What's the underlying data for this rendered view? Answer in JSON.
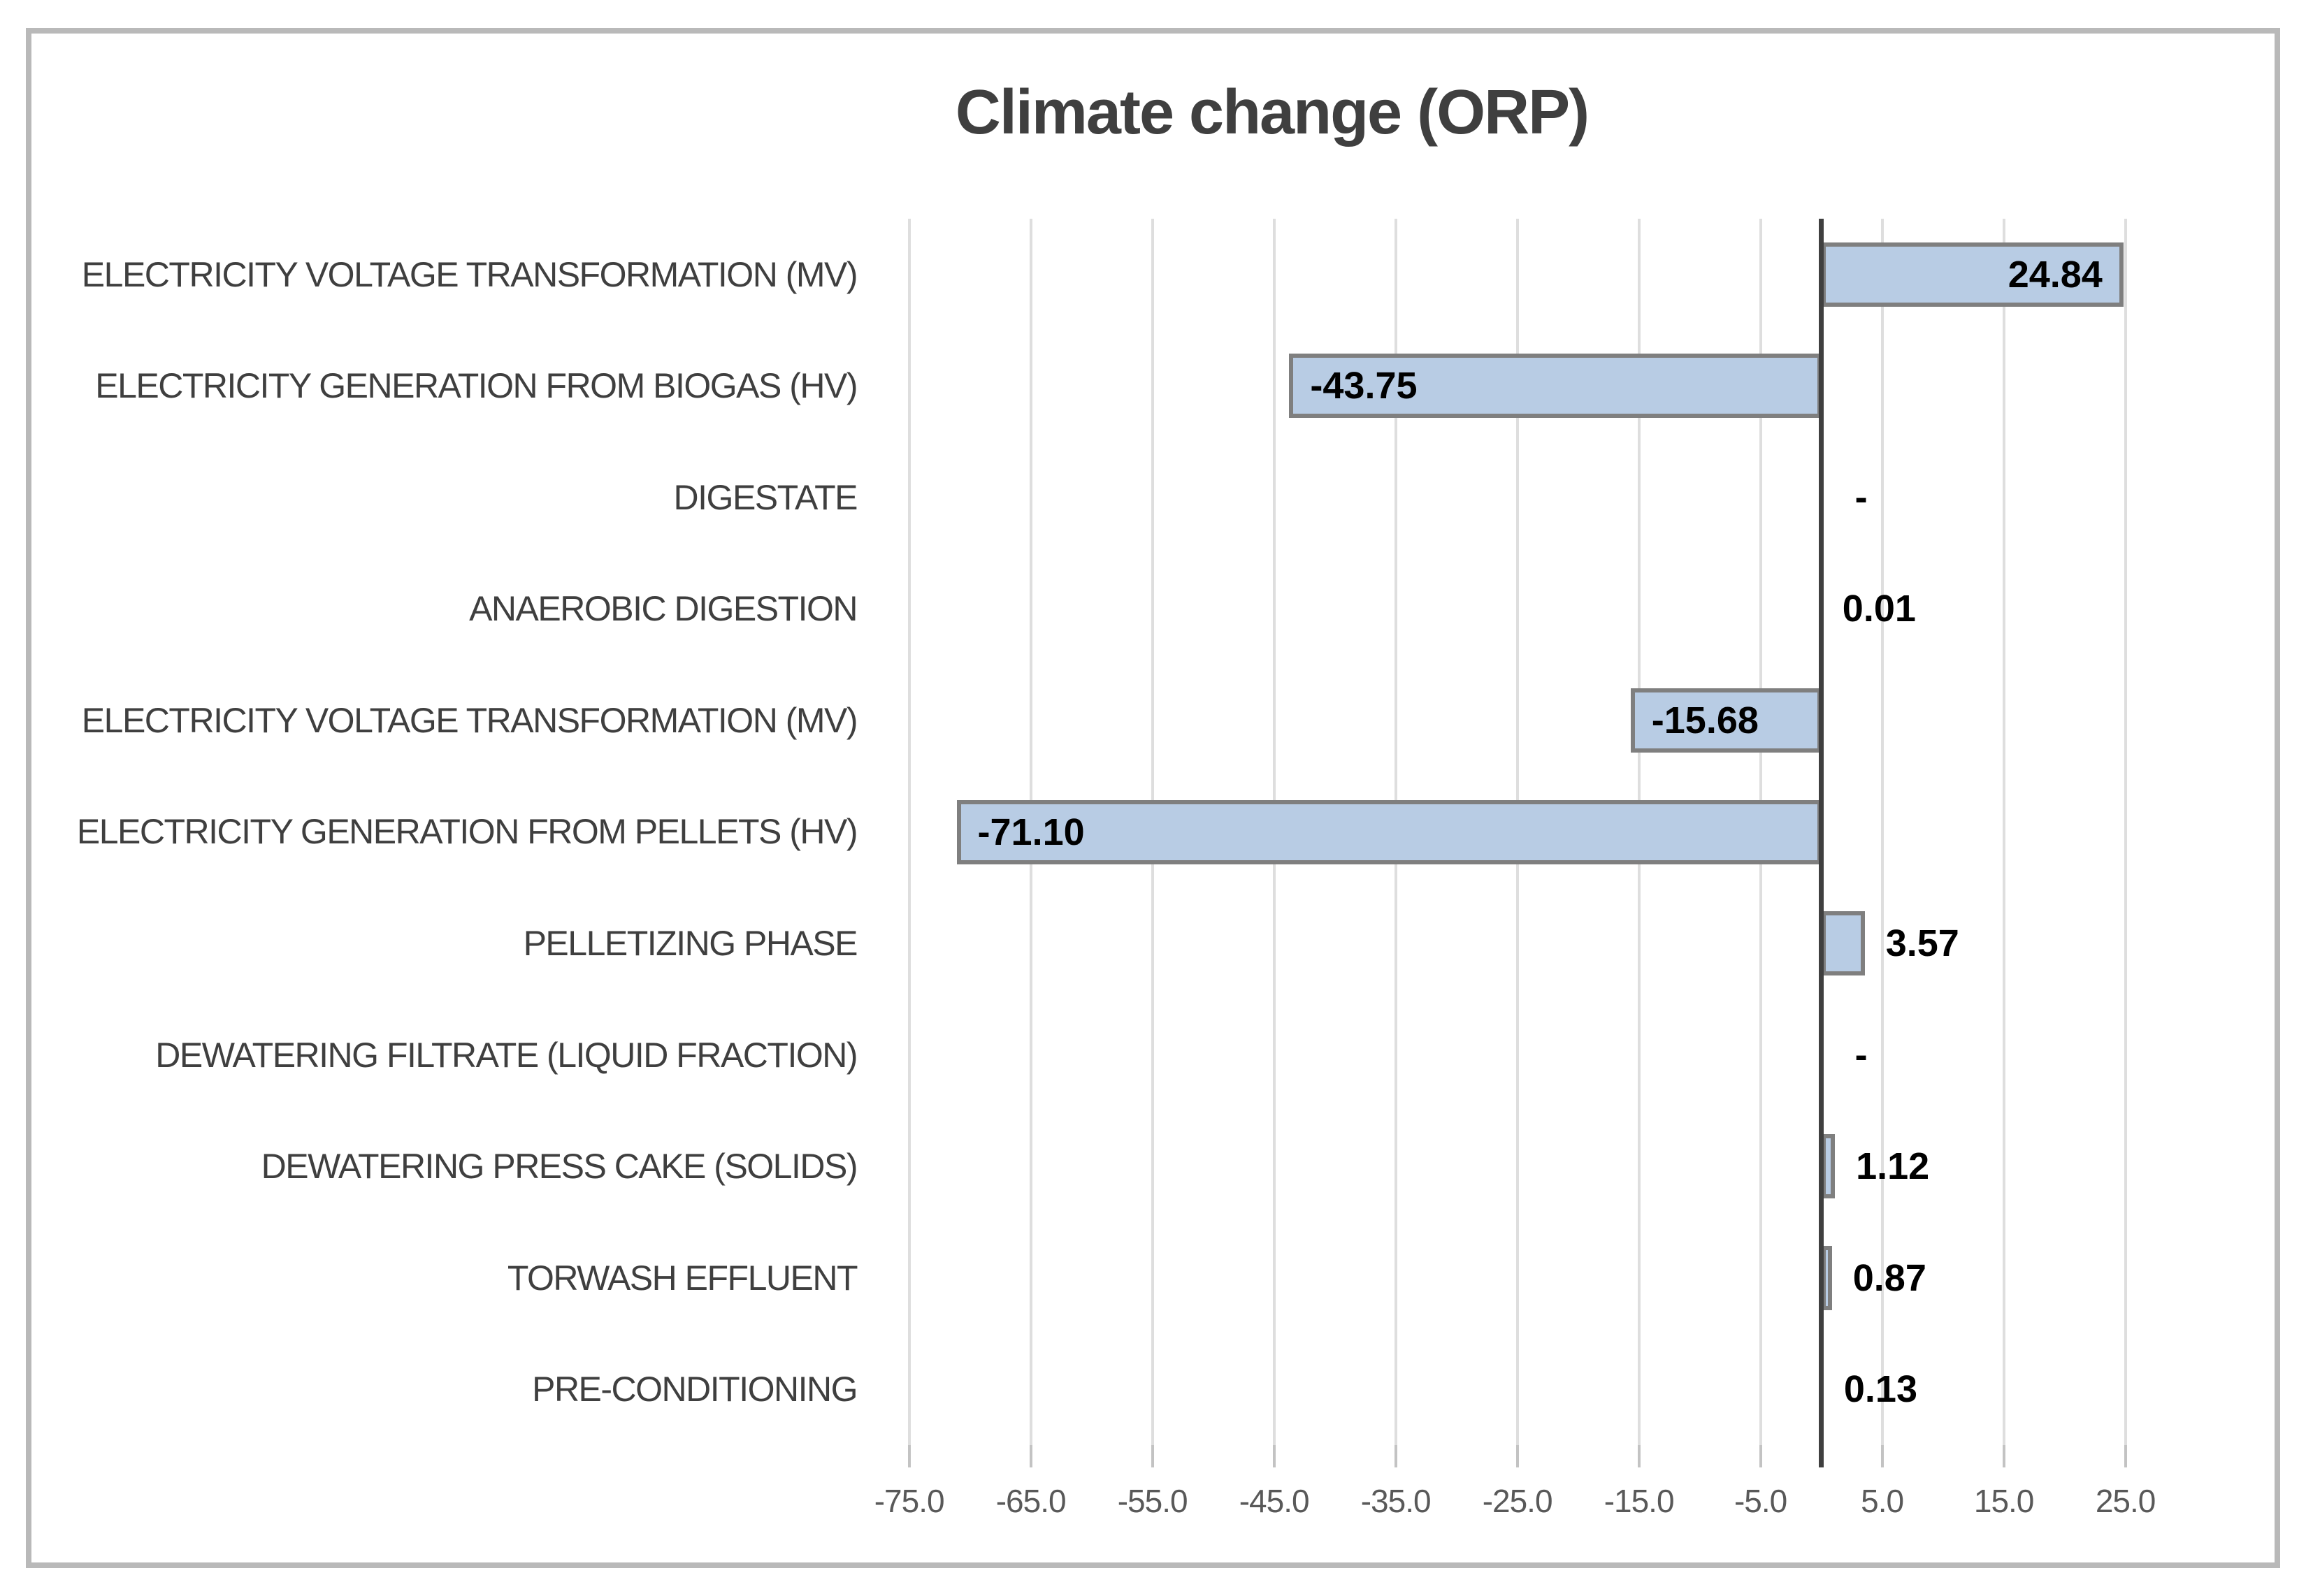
{
  "window": {
    "background": "#ffffff",
    "frame_border_color": "#b9b9b9"
  },
  "chart_data": {
    "type": "bar",
    "orientation": "horizontal",
    "title": "Climate change (ORP)",
    "categories": [
      "ELECTRICITY VOLTAGE TRANSFORMATION (MV)",
      "ELECTRICITY GENERATION FROM BIOGAS (HV)",
      "DIGESTATE",
      "ANAEROBIC DIGESTION",
      "ELECTRICITY VOLTAGE TRANSFORMATION (MV)",
      "ELECTRICITY GENERATION FROM PELLETS (HV)",
      "PELLETIZING PHASE",
      "DEWATERING FILTRATE (LIQUID FRACTION)",
      "DEWATERING PRESS CAKE (SOLIDS)",
      "TORWASH EFFLUENT",
      "PRE-CONDITIONING"
    ],
    "values": [
      24.84,
      -43.75,
      null,
      0.01,
      -15.68,
      -71.1,
      3.57,
      null,
      1.12,
      0.87,
      0.13
    ],
    "value_labels": [
      "24.84",
      "-43.75",
      "-",
      "0.01",
      "-15.68",
      "-71.10",
      "3.57",
      "-",
      "1.12",
      "0.87",
      "0.13"
    ],
    "xlabel": "",
    "ylabel": "",
    "x_ticks": [
      -75,
      -65,
      -55,
      -45,
      -35,
      -25,
      -15,
      -5,
      5,
      15,
      25
    ],
    "x_tick_labels": [
      "-75.0",
      "-65.0",
      "-55.0",
      "-45.0",
      "-35.0",
      "-25.0",
      "-15.0",
      "-5.0",
      "5.0",
      "15.0",
      "25.0"
    ],
    "xlim": [
      -75.9,
      28.7
    ],
    "grid": "vertical-major",
    "legend": "none",
    "colors": {
      "bar_fill": "#b8cce4",
      "bar_border": "#7f7f7f",
      "zero_axis": "#3f3f3f",
      "gridline": "#dedede",
      "tick_stub": "#c3c3c3",
      "title": "#3f3f3f",
      "category_label": "#3f3f3f",
      "value_label": "#000000",
      "tick_label": "#595959"
    }
  }
}
